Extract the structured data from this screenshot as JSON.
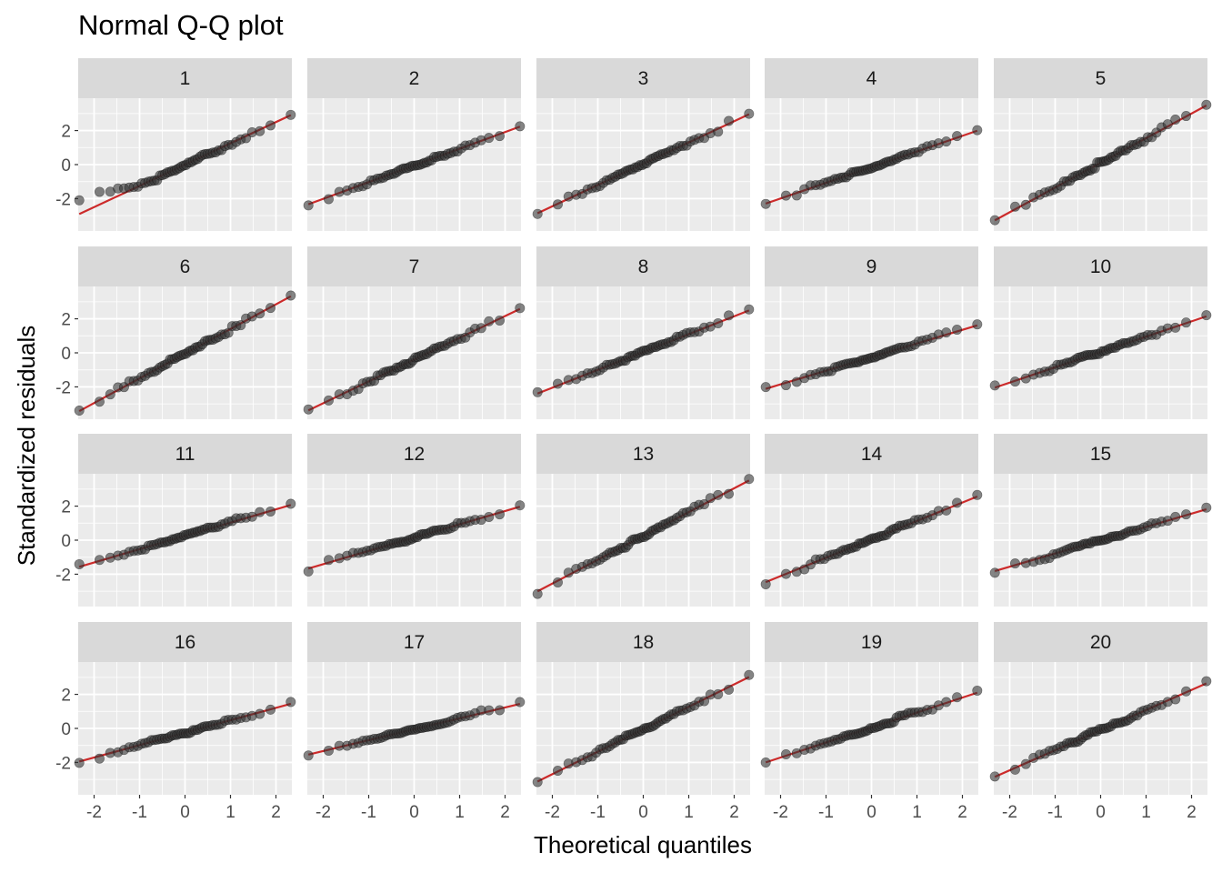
{
  "chart_data": {
    "type": "scatter",
    "title": "Normal Q-Q plot",
    "xlabel": "Theoretical quantiles",
    "ylabel": "Standardized residuals",
    "xlim": [
      -2.35,
      2.35
    ],
    "ylim": [
      -3.9,
      3.9
    ],
    "x_ticks": [
      -2,
      -1,
      0,
      1,
      2
    ],
    "y_ticks": [
      -2,
      0,
      2
    ],
    "grid": true,
    "point_color": "#333333",
    "line_color": "#cc2a2a",
    "strip_fill": "#d9d9d9",
    "panel_fill": "#ebebeb",
    "n_points": 50,
    "panels": [
      {
        "label": "1",
        "line": {
          "intercept": 0.0,
          "slope": 1.25
        },
        "sorted_residuals": [
          -2.1,
          -1.6,
          -1.4,
          -1.3,
          -1.1
        ]
      },
      {
        "label": "2",
        "line": {
          "intercept": -0.05,
          "slope": 0.98
        }
      },
      {
        "label": "3",
        "line": {
          "intercept": 0.05,
          "slope": 1.25
        }
      },
      {
        "label": "4",
        "line": {
          "intercept": -0.15,
          "slope": 0.92
        }
      },
      {
        "label": "5",
        "line": {
          "intercept": 0.1,
          "slope": 1.45
        }
      },
      {
        "label": "6",
        "line": {
          "intercept": -0.05,
          "slope": 1.45
        }
      },
      {
        "label": "7",
        "line": {
          "intercept": -0.4,
          "slope": 1.28
        }
      },
      {
        "label": "8",
        "line": {
          "intercept": 0.05,
          "slope": 1.05
        }
      },
      {
        "label": "9",
        "line": {
          "intercept": -0.25,
          "slope": 0.8
        }
      },
      {
        "label": "10",
        "line": {
          "intercept": 0.05,
          "slope": 0.9
        }
      },
      {
        "label": "11",
        "line": {
          "intercept": 0.25,
          "slope": 0.78
        }
      },
      {
        "label": "12",
        "line": {
          "intercept": 0.15,
          "slope": 0.78
        }
      },
      {
        "label": "13",
        "line": {
          "intercept": 0.25,
          "slope": 1.4
        }
      },
      {
        "label": "14",
        "line": {
          "intercept": 0.05,
          "slope": 1.08
        }
      },
      {
        "label": "15",
        "line": {
          "intercept": 0.0,
          "slope": 0.78
        }
      },
      {
        "label": "16",
        "line": {
          "intercept": -0.25,
          "slope": 0.73
        }
      },
      {
        "label": "17",
        "line": {
          "intercept": -0.05,
          "slope": 0.64
        }
      },
      {
        "label": "18",
        "line": {
          "intercept": -0.05,
          "slope": 1.32
        }
      },
      {
        "label": "19",
        "line": {
          "intercept": 0.05,
          "slope": 0.88
        }
      },
      {
        "label": "20",
        "line": {
          "intercept": -0.1,
          "slope": 1.18
        }
      }
    ]
  }
}
